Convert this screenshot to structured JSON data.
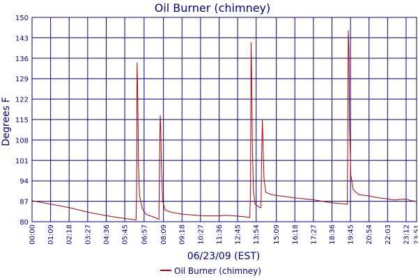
{
  "chart_data": {
    "type": "line",
    "title": "Oil Burner (chimney)",
    "xlabel": "06/23/09 (EST)",
    "ylabel": "Degrees F",
    "ylim": [
      80,
      150
    ],
    "yticks": [
      80,
      87,
      94,
      101,
      108,
      115,
      122,
      129,
      136,
      143,
      150
    ],
    "xlim": [
      "00:00",
      "23:51"
    ],
    "xticks": [
      "00:00",
      "01:09",
      "02:18",
      "03:27",
      "04:36",
      "05:45",
      "06:57",
      "08:09",
      "09:18",
      "10:27",
      "11:36",
      "12:45",
      "13:54",
      "15:09",
      "16:18",
      "17:27",
      "18:36",
      "19:45",
      "20:54",
      "22:03",
      "23:12",
      "23:51"
    ],
    "grid": true,
    "legend_position": "bottom-center",
    "colors": {
      "series": "#aa0000",
      "grid": "#000080",
      "text": "#000080"
    },
    "series": [
      {
        "name": "Oil Burner (chimney)",
        "points": [
          [
            "00:00",
            87.2
          ],
          [
            "00:30",
            86.7
          ],
          [
            "01:09",
            86.0
          ],
          [
            "01:45",
            85.4
          ],
          [
            "02:18",
            84.8
          ],
          [
            "03:00",
            83.9
          ],
          [
            "03:27",
            83.3
          ],
          [
            "04:00",
            82.7
          ],
          [
            "04:36",
            82.1
          ],
          [
            "05:15",
            81.5
          ],
          [
            "05:45",
            81.1
          ],
          [
            "06:20",
            80.7
          ],
          [
            "06:27",
            80.6
          ],
          [
            "06:29",
            90.0
          ],
          [
            "06:31",
            134.5
          ],
          [
            "06:33",
            126.0
          ],
          [
            "06:36",
            100.0
          ],
          [
            "06:40",
            89.0
          ],
          [
            "06:50",
            84.5
          ],
          [
            "07:05",
            82.5
          ],
          [
            "07:40",
            81.3
          ],
          [
            "07:52",
            80.8
          ],
          [
            "07:54",
            96.0
          ],
          [
            "07:57",
            116.5
          ],
          [
            "07:59",
            112.0
          ],
          [
            "08:02",
            97.0
          ],
          [
            "08:06",
            87.0
          ],
          [
            "08:15",
            84.0
          ],
          [
            "08:40",
            83.2
          ],
          [
            "09:18",
            82.6
          ],
          [
            "10:27",
            82.1
          ],
          [
            "11:00",
            82.0
          ],
          [
            "11:36",
            82.0
          ],
          [
            "12:00",
            82.2
          ],
          [
            "12:45",
            81.9
          ],
          [
            "13:20",
            81.6
          ],
          [
            "13:30",
            81.4
          ],
          [
            "13:33",
            90.0
          ],
          [
            "13:35",
            141.5
          ],
          [
            "13:37",
            130.0
          ],
          [
            "13:40",
            105.0
          ],
          [
            "13:44",
            90.0
          ],
          [
            "13:50",
            86.0
          ],
          [
            "14:05",
            85.0
          ],
          [
            "14:12",
            84.8
          ],
          [
            "14:14",
            100.0
          ],
          [
            "14:17",
            115.0
          ],
          [
            "14:19",
            108.0
          ],
          [
            "14:23",
            95.0
          ],
          [
            "14:30",
            90.0
          ],
          [
            "14:50",
            89.3
          ],
          [
            "15:09",
            89.0
          ],
          [
            "16:18",
            88.2
          ],
          [
            "17:27",
            87.5
          ],
          [
            "18:00",
            87.0
          ],
          [
            "18:36",
            86.5
          ],
          [
            "19:20",
            86.1
          ],
          [
            "19:33",
            86.0
          ],
          [
            "19:35",
            106.0
          ],
          [
            "19:37",
            145.5
          ],
          [
            "19:39",
            140.0
          ],
          [
            "19:42",
            112.0
          ],
          [
            "19:46",
            96.0
          ],
          [
            "19:55",
            91.0
          ],
          [
            "20:15",
            89.3
          ],
          [
            "20:54",
            88.8
          ],
          [
            "21:30",
            88.2
          ],
          [
            "22:03",
            87.8
          ],
          [
            "22:30",
            87.4
          ],
          [
            "22:45",
            87.6
          ],
          [
            "23:12",
            87.8
          ],
          [
            "23:30",
            87.2
          ],
          [
            "23:51",
            87.0
          ]
        ]
      }
    ]
  }
}
